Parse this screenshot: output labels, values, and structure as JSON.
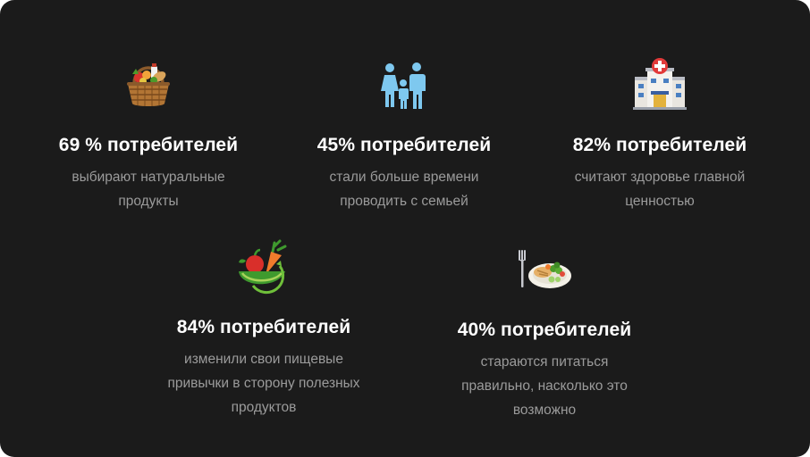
{
  "stats": [
    {
      "headline": "69 % потребителей",
      "desc": "выбирают натуральные продукты",
      "icon": "food-basket-icon"
    },
    {
      "headline": "45% потребителей",
      "desc": "стали больше времени проводить с семьей",
      "icon": "family-icon"
    },
    {
      "headline": "82% потребителей",
      "desc": "считают здоровье главной ценностью",
      "icon": "hospital-icon"
    },
    {
      "headline": "84% потребителей",
      "desc": "изменили свои пищевые привычки в сторону полезных продуктов",
      "icon": "vegetables-bowl-icon"
    },
    {
      "headline": "40% потребителей",
      "desc": "стараются питаться правильно, насколько это возможно",
      "icon": "healthy-plate-icon"
    }
  ],
  "colors": {
    "background": "#1b1b1b",
    "headline": "#ffffff",
    "description": "#9b9b9b",
    "family_icon": "#7ec8ef"
  }
}
